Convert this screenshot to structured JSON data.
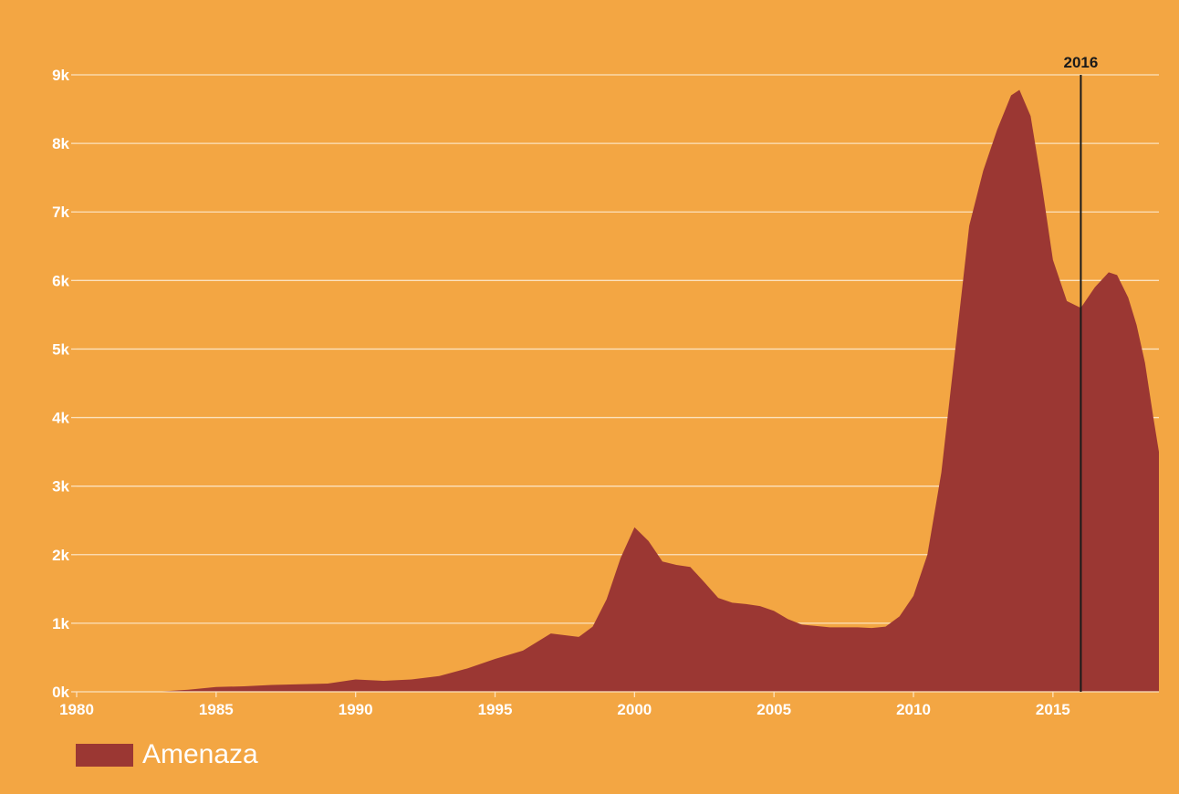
{
  "chart_data": {
    "type": "area",
    "title": "",
    "xlabel": "",
    "ylabel": "",
    "xlim": [
      1980,
      2018.8
    ],
    "ylim": [
      0,
      9000
    ],
    "x_ticks": [
      1980,
      1985,
      1990,
      1995,
      2000,
      2005,
      2010,
      2015
    ],
    "x_tick_labels": [
      "1980",
      "1985",
      "1990",
      "1995",
      "2000",
      "2005",
      "2010",
      "2015"
    ],
    "y_ticks": [
      0,
      1000,
      2000,
      3000,
      4000,
      5000,
      6000,
      7000,
      8000,
      9000
    ],
    "y_tick_labels": [
      "0k",
      "1k",
      "2k",
      "3k",
      "4k",
      "5k",
      "6k",
      "7k",
      "8k",
      "9k"
    ],
    "grid": true,
    "legend_position": "bottom-left",
    "series": [
      {
        "name": "Amenaza",
        "color": "#9B3733",
        "x": [
          1980,
          1981,
          1982,
          1983,
          1984,
          1985,
          1986,
          1987,
          1988,
          1989,
          1990,
          1991,
          1992,
          1993,
          1994,
          1995,
          1996,
          1997,
          1998,
          1998.5,
          1999,
          1999.5,
          2000,
          2000.5,
          2001,
          2001.5,
          2002,
          2002.5,
          2003,
          2003.5,
          2004,
          2004.5,
          2005,
          2005.5,
          2006,
          2007,
          2008,
          2008.5,
          2009,
          2009.5,
          2010,
          2010.5,
          2011,
          2011.5,
          2012,
          2012.5,
          2013,
          2013.5,
          2013.8,
          2014.2,
          2014.6,
          2015,
          2015.5,
          2016,
          2016.5,
          2017,
          2017.3,
          2017.7,
          2018,
          2018.3,
          2018.6,
          2018.8
        ],
        "values": [
          0,
          0,
          0,
          5,
          30,
          70,
          80,
          100,
          110,
          120,
          180,
          160,
          180,
          230,
          340,
          480,
          600,
          850,
          800,
          950,
          1350,
          1950,
          2400,
          2200,
          1900,
          1850,
          1820,
          1600,
          1370,
          1300,
          1280,
          1250,
          1180,
          1060,
          980,
          940,
          940,
          930,
          950,
          1100,
          1400,
          2000,
          3200,
          5000,
          6800,
          7600,
          8200,
          8700,
          8780,
          8400,
          7400,
          6300,
          5700,
          5600,
          5900,
          6120,
          6080,
          5750,
          5350,
          4800,
          4000,
          3500
        ]
      }
    ],
    "annotations": [
      {
        "type": "vertical-line",
        "x": 2016,
        "label": "2016",
        "color": "#1A1A1A"
      }
    ]
  }
}
